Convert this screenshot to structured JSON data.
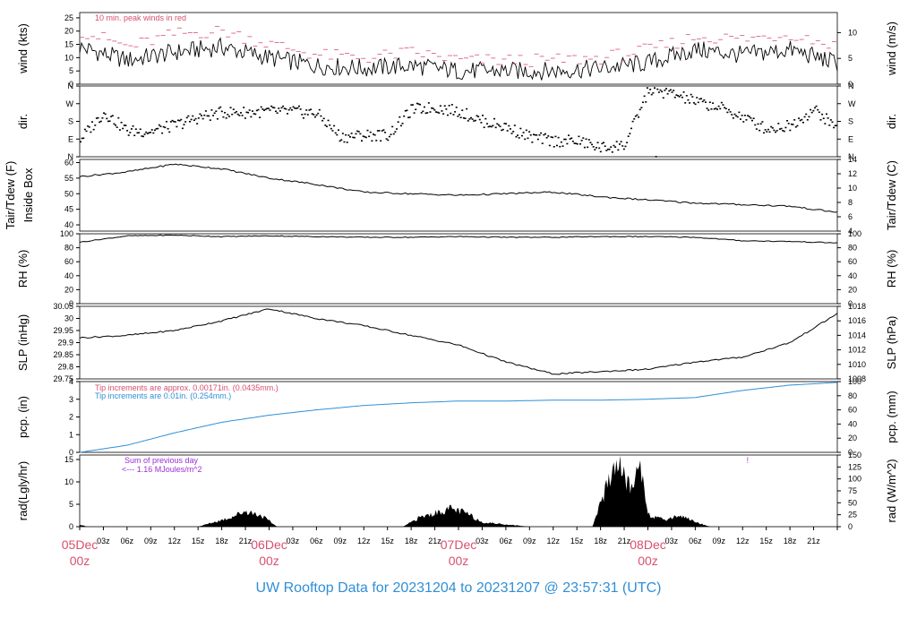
{
  "title": "UW Rooftop Data for 20231204  to  20231207 @ 23:57:31  (UTC)",
  "colors": {
    "accent_red": "#d9506e",
    "accent_blue": "#2f8fd6",
    "accent_purple": "#9b2fd6",
    "line": "#000000"
  },
  "x_axis": {
    "day_labels": [
      {
        "date": "05Dec",
        "time": "00z"
      },
      {
        "date": "06Dec",
        "time": "00z"
      },
      {
        "date": "07Dec",
        "time": "00z"
      },
      {
        "date": "08Dec",
        "time": "00z"
      }
    ],
    "hour_ticks": [
      "03z",
      "06z",
      "09z",
      "12z",
      "15z",
      "18z",
      "21z"
    ]
  },
  "chart_data": [
    {
      "type": "line",
      "id": "wind",
      "ylabel": "wind (kts)",
      "ylabel_right": "wind (m/s)",
      "ylim": [
        0,
        27
      ],
      "yticks": [
        0,
        5,
        10,
        15,
        20,
        25
      ],
      "yticks_right": [
        0,
        5,
        10
      ],
      "annotation": "10 min. peak winds in red",
      "x_hours": [
        0,
        6,
        12,
        18,
        24,
        30,
        36,
        42,
        48,
        54,
        60,
        66,
        72,
        78,
        84,
        90,
        96
      ],
      "series": [
        {
          "values": [
            14,
            9,
            12,
            14,
            10,
            7,
            6,
            7,
            5,
            5,
            5,
            6,
            8,
            13,
            11,
            13,
            8
          ]
        },
        {
          "values": [
            20,
            14,
            19,
            20,
            15,
            11,
            10,
            12,
            9,
            9,
            9,
            10,
            13,
            18,
            17,
            19,
            14
          ]
        }
      ]
    },
    {
      "type": "scatter",
      "id": "dir",
      "ylabel": "dir.",
      "ylabel_right": "dir.",
      "yticks": [
        "N",
        "E",
        "S",
        "W",
        "N"
      ],
      "x_hours": [
        0,
        3,
        6,
        9,
        12,
        15,
        18,
        21,
        24,
        27,
        30,
        33,
        36,
        39,
        42,
        45,
        48,
        51,
        54,
        57,
        60,
        63,
        66,
        69,
        72,
        75,
        78,
        81,
        84,
        87,
        90,
        93,
        96
      ],
      "values": [
        90,
        225,
        130,
        130,
        160,
        200,
        225,
        225,
        230,
        230,
        220,
        100,
        110,
        110,
        240,
        250,
        230,
        180,
        150,
        100,
        80,
        80,
        45,
        60,
        340,
        320,
        280,
        250,
        200,
        140,
        160,
        240,
        140
      ]
    },
    {
      "type": "line",
      "id": "temp",
      "ylabel": "Tair/Tdew (F)",
      "ylabel2": "Inside Box",
      "ylabel_right": "Tair/Tdew (C)",
      "ylim": [
        38,
        61
      ],
      "yticks": [
        40,
        45,
        50,
        55,
        60
      ],
      "yticks_right": [
        4,
        6,
        8,
        10,
        12,
        14
      ],
      "x_hours": [
        0,
        6,
        12,
        18,
        24,
        30,
        36,
        42,
        48,
        54,
        60,
        66,
        72,
        78,
        84,
        90,
        96
      ],
      "values": [
        55.5,
        57,
        59.5,
        58,
        55,
        53,
        50.5,
        50,
        49.5,
        50,
        50.5,
        49,
        48,
        47,
        46.5,
        46,
        44
      ]
    },
    {
      "type": "line",
      "id": "rh",
      "ylabel": "RH (%)",
      "ylabel_right": "RH (%)",
      "ylim": [
        0,
        100
      ],
      "yticks": [
        0,
        20,
        40,
        60,
        80,
        100
      ],
      "yticks_right": [
        0,
        20,
        40,
        60,
        80,
        100
      ],
      "x_hours": [
        0,
        6,
        12,
        18,
        24,
        30,
        36,
        42,
        48,
        54,
        60,
        66,
        72,
        78,
        84,
        90,
        96
      ],
      "values": [
        88,
        97,
        98,
        96,
        97,
        96,
        95,
        95,
        96,
        95,
        95,
        96,
        96,
        95,
        90,
        89,
        87
      ]
    },
    {
      "type": "line",
      "id": "slp",
      "ylabel": "SLP (inHg)",
      "ylabel_right": "SLP (hPa)",
      "ylim": [
        29.75,
        30.05
      ],
      "yticks": [
        29.75,
        29.8,
        29.85,
        29.9,
        29.95,
        30.0,
        30.05
      ],
      "yticks_right": [
        1008,
        1010,
        1012,
        1014,
        1016,
        1018
      ],
      "x_hours": [
        0,
        6,
        12,
        18,
        24,
        30,
        36,
        42,
        48,
        54,
        60,
        66,
        72,
        78,
        84,
        90,
        96
      ],
      "values": [
        29.92,
        29.93,
        29.95,
        29.99,
        30.04,
        30.0,
        29.97,
        29.93,
        29.89,
        29.82,
        29.77,
        29.78,
        29.79,
        29.82,
        29.84,
        29.9,
        30.02
      ]
    },
    {
      "type": "line",
      "id": "pcp",
      "ylabel": "pcp. (in)",
      "ylabel_right": "pcp. (mm)",
      "ylim": [
        0,
        4
      ],
      "yticks": [
        0,
        1,
        2,
        3,
        4
      ],
      "yticks_right": [
        0,
        20,
        40,
        60,
        80,
        100
      ],
      "notes": [
        "Tip increments are approx. 0.00171in. (0.0435mm.)",
        "Tip increments are 0.01in. (0.254mm.)"
      ],
      "x_hours": [
        0,
        6,
        12,
        18,
        24,
        30,
        36,
        42,
        48,
        54,
        60,
        66,
        72,
        78,
        84,
        90,
        96
      ],
      "values": [
        0,
        0.4,
        1.1,
        1.7,
        2.1,
        2.4,
        2.65,
        2.8,
        2.9,
        2.9,
        2.95,
        2.95,
        3.0,
        3.1,
        3.5,
        3.8,
        3.95
      ]
    },
    {
      "type": "area",
      "id": "rad",
      "ylabel": "rad(Lgly/hr)",
      "ylabel_right": "rad (W/m^2)",
      "ylim": [
        0,
        16
      ],
      "yticks": [
        0,
        5,
        10,
        15
      ],
      "yticks_right": [
        0,
        25,
        50,
        75,
        100,
        125,
        150
      ],
      "notes": [
        "Sum of previous day",
        "<--- 1.16 MJoules/m^2"
      ],
      "marker": "!",
      "x_hours": [
        0,
        1,
        15,
        17,
        19,
        21,
        23,
        25,
        31,
        41,
        43,
        45,
        47,
        49,
        51,
        57,
        65,
        66,
        67,
        68,
        69,
        70,
        71,
        72,
        73,
        74,
        75,
        76,
        77,
        78,
        79,
        80,
        81,
        82,
        83,
        84,
        85,
        86,
        87,
        88,
        89,
        90,
        91,
        92,
        93,
        94,
        95,
        96
      ],
      "values": [
        0.5,
        0,
        0,
        1,
        2,
        3.5,
        2.5,
        0,
        0,
        0,
        2,
        3,
        4,
        3,
        1,
        0,
        0,
        5,
        10,
        15,
        11,
        8,
        15,
        3,
        2,
        1.5,
        2,
        2.5,
        2,
        1,
        0.5,
        0,
        0,
        0,
        0,
        0,
        0,
        0,
        0,
        0,
        0,
        0,
        0,
        0,
        0,
        0,
        0,
        0
      ]
    }
  ]
}
